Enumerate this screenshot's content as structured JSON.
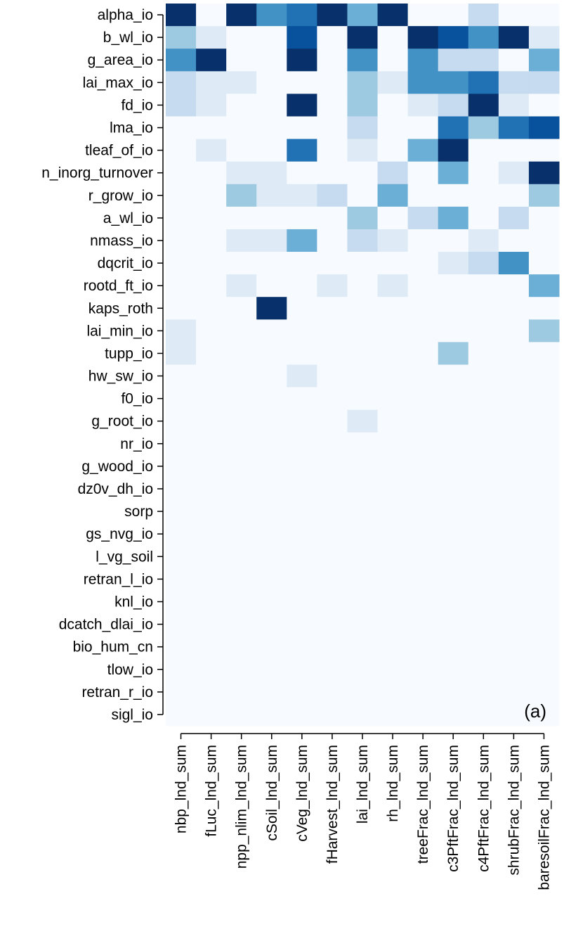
{
  "chart_data": {
    "type": "heatmap",
    "title": "",
    "xlabel": "",
    "ylabel": "",
    "panel_label": "(a)",
    "colormap": "Blues",
    "colors": {
      "background": "#f7fbff",
      "level_1": "#deebf7",
      "level_2": "#c6dbef",
      "level_3": "#9ecae1",
      "level_4": "#6baed6",
      "level_5": "#4292c6",
      "level_6": "#2171b5",
      "level_7": "#08519c",
      "level_8": "#08306b"
    },
    "value_range": [
      0,
      1
    ],
    "columns": [
      "nbp_lnd_sum",
      "fLuc_lnd_sum",
      "npp_nlim_lnd_sum",
      "cSoil_lnd_sum",
      "cVeg_lnd_sum",
      "fHarvest_lnd_sum",
      "lai_lnd_sum",
      "rh_lnd_sum",
      "treeFrac_lnd_sum",
      "c3PftFrac_lnd_sum",
      "c4PftFrac_lnd_sum",
      "shrubFrac_lnd_sum",
      "baresoilFrac_lnd_sum"
    ],
    "rows": [
      "alpha_io",
      "b_wl_io",
      "g_area_io",
      "lai_max_io",
      "fd_io",
      "lma_io",
      "tleaf_of_io",
      "n_inorg_turnover",
      "r_grow_io",
      "a_wl_io",
      "nmass_io",
      "dqcrit_io",
      "rootd_ft_io",
      "kaps_roth",
      "lai_min_io",
      "tupp_io",
      "hw_sw_io",
      "f0_io",
      "g_root_io",
      "nr_io",
      "g_wood_io",
      "dz0v_dh_io",
      "sorp",
      "gs_nvg_io",
      "l_vg_soil",
      "retran_l_io",
      "knl_io",
      "dcatch_dlai_io",
      "bio_hum_cn",
      "tlow_io",
      "retran_r_io",
      "sigl_io"
    ],
    "values": [
      [
        1.0,
        0.0,
        1.0,
        0.62,
        0.75,
        1.0,
        0.5,
        1.0,
        0.0,
        0.0,
        0.25,
        0.0,
        0.0
      ],
      [
        0.38,
        0.12,
        0.0,
        0.0,
        0.88,
        0.0,
        1.0,
        0.0,
        1.0,
        0.88,
        0.62,
        1.0,
        0.12
      ],
      [
        0.62,
        1.0,
        0.0,
        0.0,
        1.0,
        0.0,
        0.62,
        0.0,
        0.62,
        0.25,
        0.25,
        0.0,
        0.5
      ],
      [
        0.25,
        0.12,
        0.12,
        0.0,
        0.0,
        0.0,
        0.38,
        0.12,
        0.62,
        0.62,
        0.75,
        0.25,
        0.25
      ],
      [
        0.25,
        0.12,
        0.0,
        0.0,
        1.0,
        0.0,
        0.38,
        0.0,
        0.12,
        0.25,
        1.0,
        0.12,
        0.0
      ],
      [
        0.0,
        0.0,
        0.0,
        0.0,
        0.0,
        0.0,
        0.25,
        0.0,
        0.0,
        0.75,
        0.38,
        0.75,
        0.88
      ],
      [
        0.0,
        0.12,
        0.0,
        0.0,
        0.75,
        0.0,
        0.12,
        0.0,
        0.5,
        1.0,
        0.0,
        0.0,
        0.0
      ],
      [
        0.0,
        0.0,
        0.12,
        0.12,
        0.0,
        0.0,
        0.0,
        0.25,
        0.0,
        0.5,
        0.0,
        0.12,
        1.0
      ],
      [
        0.0,
        0.0,
        0.38,
        0.12,
        0.12,
        0.25,
        0.0,
        0.5,
        0.0,
        0.0,
        0.0,
        0.0,
        0.38
      ],
      [
        0.0,
        0.0,
        0.0,
        0.0,
        0.0,
        0.0,
        0.38,
        0.0,
        0.25,
        0.5,
        0.0,
        0.25,
        0.0
      ],
      [
        0.0,
        0.0,
        0.12,
        0.12,
        0.5,
        0.0,
        0.25,
        0.12,
        0.0,
        0.0,
        0.12,
        0.0,
        0.0
      ],
      [
        0.0,
        0.0,
        0.0,
        0.0,
        0.0,
        0.0,
        0.0,
        0.0,
        0.0,
        0.12,
        0.25,
        0.62,
        0.0
      ],
      [
        0.0,
        0.0,
        0.12,
        0.0,
        0.0,
        0.12,
        0.0,
        0.12,
        0.0,
        0.0,
        0.0,
        0.0,
        0.5
      ],
      [
        0.0,
        0.0,
        0.0,
        1.0,
        0.0,
        0.0,
        0.0,
        0.0,
        0.0,
        0.0,
        0.0,
        0.0,
        0.0
      ],
      [
        0.12,
        0.0,
        0.0,
        0.0,
        0.0,
        0.0,
        0.0,
        0.0,
        0.0,
        0.0,
        0.0,
        0.0,
        0.38
      ],
      [
        0.12,
        0.0,
        0.0,
        0.0,
        0.0,
        0.0,
        0.0,
        0.0,
        0.0,
        0.38,
        0.0,
        0.0,
        0.0
      ],
      [
        0.0,
        0.0,
        0.0,
        0.0,
        0.12,
        0.0,
        0.0,
        0.0,
        0.0,
        0.0,
        0.0,
        0.0,
        0.0
      ],
      [
        0.0,
        0.0,
        0.0,
        0.0,
        0.0,
        0.0,
        0.0,
        0.0,
        0.0,
        0.0,
        0.0,
        0.0,
        0.0
      ],
      [
        0.0,
        0.0,
        0.0,
        0.0,
        0.0,
        0.0,
        0.12,
        0.0,
        0.0,
        0.0,
        0.0,
        0.0,
        0.0
      ],
      [
        0.0,
        0.0,
        0.0,
        0.0,
        0.0,
        0.0,
        0.0,
        0.0,
        0.0,
        0.0,
        0.0,
        0.0,
        0.0
      ],
      [
        0.0,
        0.0,
        0.0,
        0.0,
        0.0,
        0.0,
        0.0,
        0.0,
        0.0,
        0.0,
        0.0,
        0.0,
        0.0
      ],
      [
        0.0,
        0.0,
        0.0,
        0.0,
        0.0,
        0.0,
        0.0,
        0.0,
        0.0,
        0.0,
        0.0,
        0.0,
        0.0
      ],
      [
        0.0,
        0.0,
        0.0,
        0.0,
        0.0,
        0.0,
        0.0,
        0.0,
        0.0,
        0.0,
        0.0,
        0.0,
        0.0
      ],
      [
        0.0,
        0.0,
        0.0,
        0.0,
        0.0,
        0.0,
        0.0,
        0.0,
        0.0,
        0.0,
        0.0,
        0.0,
        0.0
      ],
      [
        0.0,
        0.0,
        0.0,
        0.0,
        0.0,
        0.0,
        0.0,
        0.0,
        0.0,
        0.0,
        0.0,
        0.0,
        0.0
      ],
      [
        0.0,
        0.0,
        0.0,
        0.0,
        0.0,
        0.0,
        0.0,
        0.0,
        0.0,
        0.0,
        0.0,
        0.0,
        0.0
      ],
      [
        0.0,
        0.0,
        0.0,
        0.0,
        0.0,
        0.0,
        0.0,
        0.0,
        0.0,
        0.0,
        0.0,
        0.0,
        0.0
      ],
      [
        0.0,
        0.0,
        0.0,
        0.0,
        0.0,
        0.0,
        0.0,
        0.0,
        0.0,
        0.0,
        0.0,
        0.0,
        0.0
      ],
      [
        0.0,
        0.0,
        0.0,
        0.0,
        0.0,
        0.0,
        0.0,
        0.0,
        0.0,
        0.0,
        0.0,
        0.0,
        0.0
      ],
      [
        0.0,
        0.0,
        0.0,
        0.0,
        0.0,
        0.0,
        0.0,
        0.0,
        0.0,
        0.0,
        0.0,
        0.0,
        0.0
      ],
      [
        0.0,
        0.0,
        0.0,
        0.0,
        0.0,
        0.0,
        0.0,
        0.0,
        0.0,
        0.0,
        0.0,
        0.0,
        0.0
      ],
      [
        0.0,
        0.0,
        0.0,
        0.0,
        0.0,
        0.0,
        0.0,
        0.0,
        0.0,
        0.0,
        0.0,
        0.0,
        0.0
      ]
    ]
  }
}
